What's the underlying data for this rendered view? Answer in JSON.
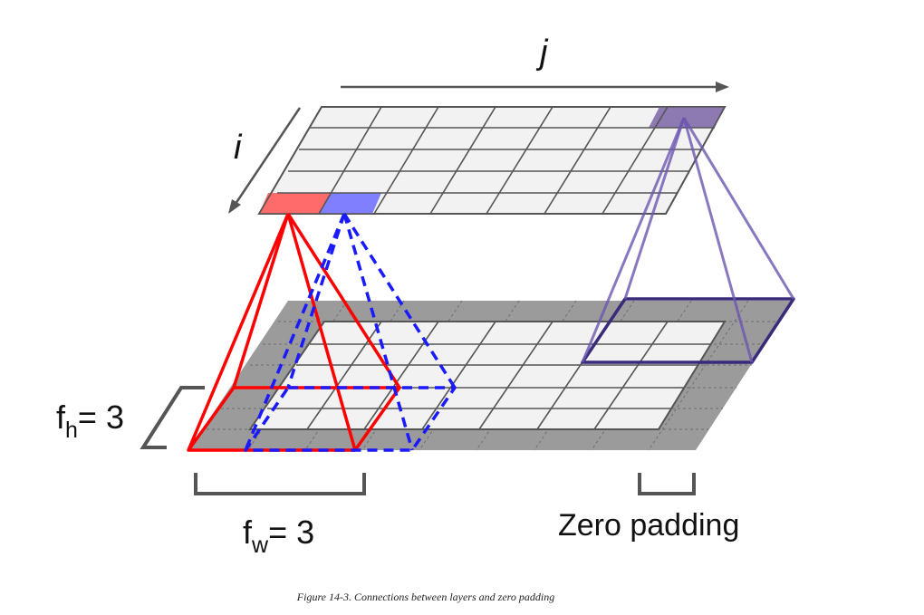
{
  "labels": {
    "j": "j",
    "i": "i",
    "fh_prefix": "f",
    "fh_sub": "h",
    "fh_suffix": "= 3",
    "fw_prefix": "f",
    "fw_sub": "w",
    "fw_suffix": "= 3",
    "zero_padding": "Zero padding"
  },
  "caption": "Figure 14-3. Connections between layers and zero padding",
  "colors": {
    "red": "#ff0000",
    "red_fill": "#ff6a6a",
    "blue": "#1a1aff",
    "blue_fill": "#8080ff",
    "purple": "#5b3f9e",
    "purple_fill": "#8d7ab3",
    "cell_fill": "#f2f2f2",
    "padding_fill": "#9b9b9b",
    "grid_line": "#555555",
    "bracket": "#555555"
  },
  "icons": [
    "arrow-right-icon",
    "arrow-down-left-icon"
  ]
}
